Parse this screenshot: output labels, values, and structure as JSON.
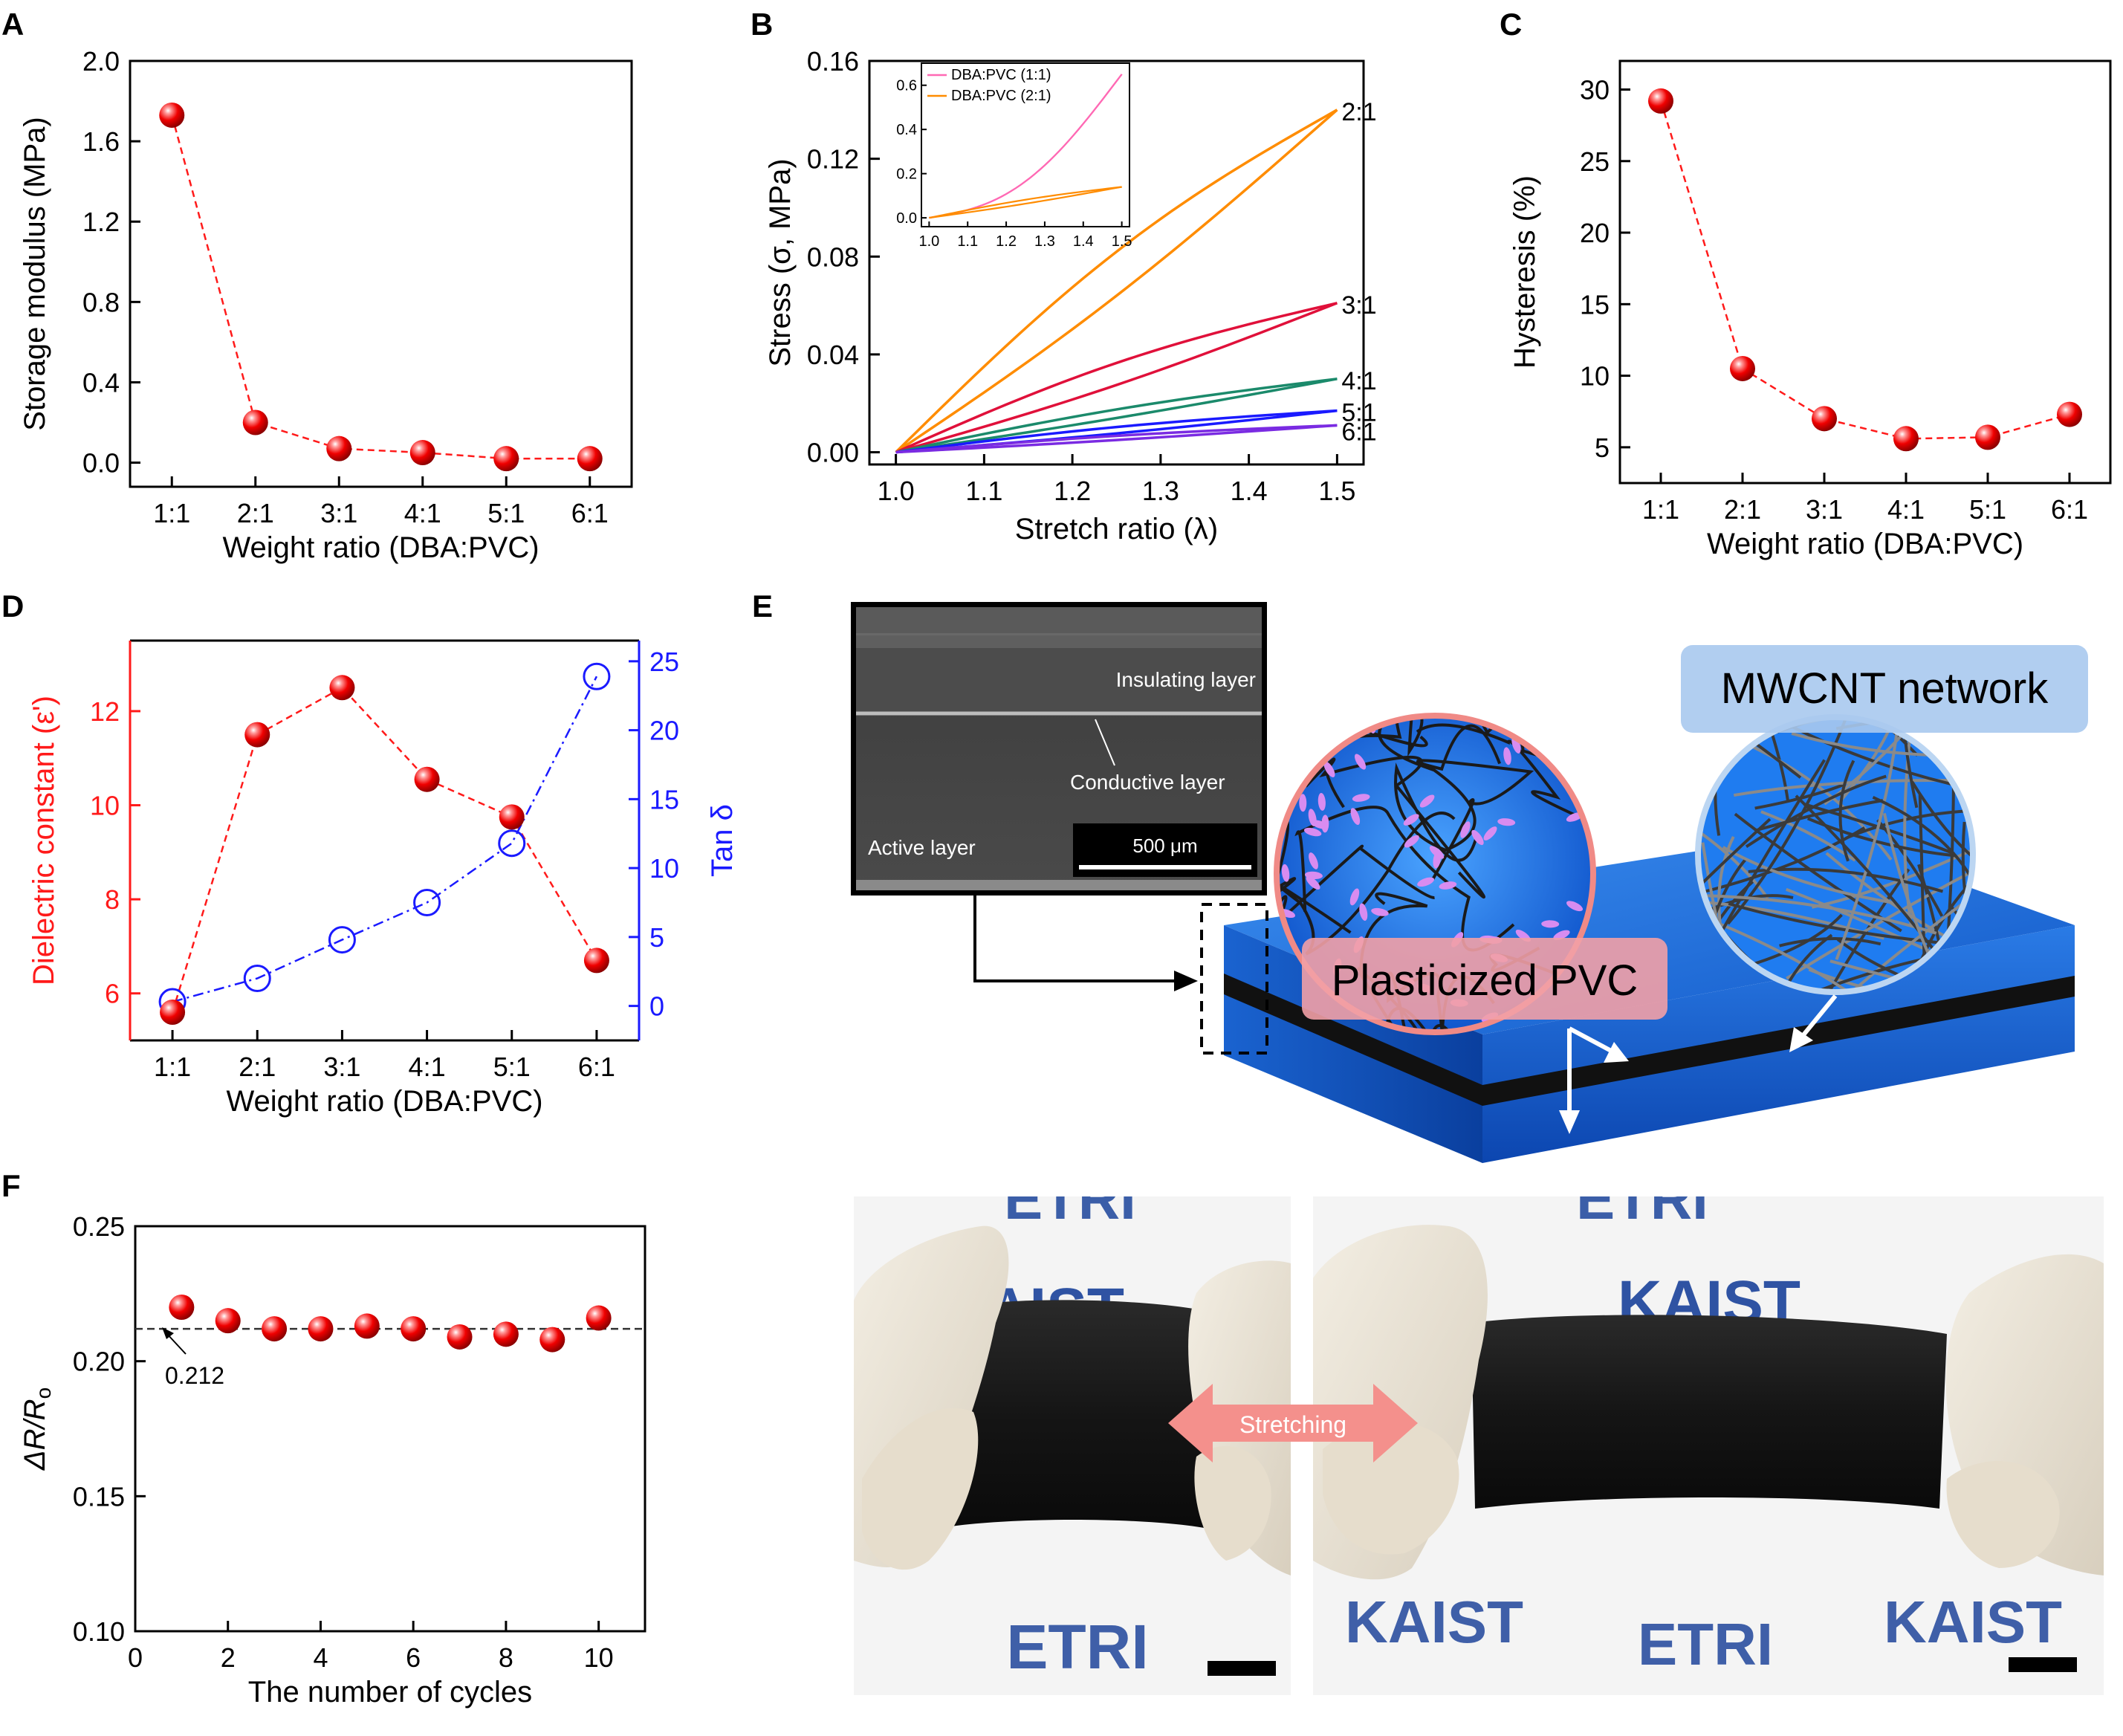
{
  "colors": {
    "red": "#ff1a1a",
    "blue": "#1a1aff",
    "orange": "#ff8c00",
    "crimson": "#e0103a",
    "green": "#1b8a6b",
    "purple": "#7a2be2",
    "pink": "#ff69b4",
    "layer_blue": "#1d6fd8",
    "salmon": "#f4908c"
  },
  "panels": {
    "a": "A",
    "b": "B",
    "c": "C",
    "d": "D",
    "e": "E",
    "f": "F"
  },
  "chart_data": [
    {
      "id": "A",
      "type": "scatter",
      "categories": [
        "1:1",
        "2:1",
        "3:1",
        "4:1",
        "5:1",
        "6:1"
      ],
      "values": [
        1.73,
        0.2,
        0.07,
        0.05,
        0.02,
        0.02
      ],
      "xlabel": "Weight ratio (DBA:PVC)",
      "ylabel": "Storage modulus (MPa)",
      "ylim": [
        -0.12,
        2.0
      ],
      "yticks": [
        0.0,
        0.4,
        0.8,
        1.2,
        1.6,
        2.0
      ],
      "ytick_labels": [
        "0.0",
        "0.4",
        "0.8",
        "1.2",
        "1.6",
        "2.0"
      ]
    },
    {
      "id": "B",
      "type": "line",
      "xlabel": "Stretch ratio (λ)",
      "ylabel": "Stress (σ, MPa)",
      "xlim": [
        0.97,
        1.53
      ],
      "ylim": [
        -0.005,
        0.16
      ],
      "xticks": [
        1.0,
        1.1,
        1.2,
        1.3,
        1.4,
        1.5
      ],
      "xtick_labels": [
        "1.0",
        "1.1",
        "1.2",
        "1.3",
        "1.4",
        "1.5"
      ],
      "yticks": [
        0.0,
        0.04,
        0.08,
        0.12,
        0.16
      ],
      "ytick_labels": [
        "0.00",
        "0.04",
        "0.08",
        "0.12",
        "0.16"
      ],
      "series": [
        {
          "name": "2:1",
          "label": "2:1",
          "max": 0.14,
          "loading_bulge": 0.006,
          "unloading_bulge": 0.012,
          "color_key": "orange"
        },
        {
          "name": "3:1",
          "label": "3:1",
          "max": 0.061,
          "loading_bulge": 0.003,
          "unloading_bulge": 0.006,
          "color_key": "crimson"
        },
        {
          "name": "4:1",
          "label": "4:1",
          "max": 0.03,
          "loading_bulge": 0.001,
          "unloading_bulge": 0.0025,
          "color_key": "green"
        },
        {
          "name": "5:1",
          "label": "5:1",
          "max": 0.017,
          "loading_bulge": 0.0008,
          "unloading_bulge": 0.0018,
          "color_key": "blue"
        },
        {
          "name": "6:1",
          "label": "6:1",
          "max": 0.011,
          "loading_bulge": 0.0005,
          "unloading_bulge": 0.0012,
          "color_key": "purple"
        }
      ],
      "inset": {
        "type": "line",
        "xlim": [
          0.98,
          1.52
        ],
        "ylim": [
          -0.04,
          0.7
        ],
        "xticks": [
          1.0,
          1.1,
          1.2,
          1.3,
          1.4,
          1.5
        ],
        "xtick_labels": [
          "1.0",
          "1.1",
          "1.2",
          "1.3",
          "1.4",
          "1.5"
        ],
        "yticks": [
          0.0,
          0.2,
          0.4,
          0.6
        ],
        "ytick_labels": [
          "0.0",
          "0.2",
          "0.4",
          "0.6"
        ],
        "series": [
          {
            "name": "DBA:PVC (1:1)",
            "max": 0.65,
            "loading_bulge": 0.16,
            "unloading_bulge": -0.16,
            "color_key": "pink"
          },
          {
            "name": "DBA:PVC (2:1)",
            "max": 0.14,
            "loading_bulge": 0.006,
            "unloading_bulge": 0.012,
            "color_key": "orange"
          }
        ]
      }
    },
    {
      "id": "C",
      "type": "scatter",
      "categories": [
        "1:1",
        "2:1",
        "3:1",
        "4:1",
        "5:1",
        "6:1"
      ],
      "values": [
        29.2,
        10.5,
        7.0,
        5.6,
        5.7,
        7.3
      ],
      "xlabel": "Weight ratio (DBA:PVC)",
      "ylabel": "Hysteresis (%)",
      "ylim": [
        2.5,
        32
      ],
      "yticks": [
        5,
        10,
        15,
        20,
        25,
        30
      ],
      "ytick_labels": [
        "5",
        "10",
        "15",
        "20",
        "25",
        "30"
      ]
    },
    {
      "id": "D",
      "type": "scatter",
      "categories": [
        "1:1",
        "2:1",
        "3:1",
        "4:1",
        "5:1",
        "6:1"
      ],
      "xlabel": "Weight ratio (DBA:PVC)",
      "ylabel_left": "Dielectric constant (ε')",
      "ylabel_right": "Tan δ",
      "ylim_left": [
        5.0,
        13.5
      ],
      "ylim_right": [
        -2.5,
        26.5
      ],
      "yticks_left": [
        6,
        8,
        10,
        12
      ],
      "ytick_labels_left": [
        "6",
        "8",
        "10",
        "12"
      ],
      "yticks_right": [
        0,
        5,
        10,
        15,
        20,
        25
      ],
      "ytick_labels_right": [
        "0",
        "5",
        "10",
        "15",
        "20",
        "25"
      ],
      "series": [
        {
          "name": "Dielectric constant (ε')",
          "axis": "left",
          "values": [
            5.6,
            11.5,
            12.5,
            10.55,
            9.75,
            6.7
          ]
        },
        {
          "name": "Tan δ",
          "axis": "right",
          "values": [
            0.3,
            2.0,
            4.8,
            7.5,
            11.8,
            23.9
          ]
        }
      ]
    },
    {
      "id": "F",
      "type": "scatter",
      "x": [
        1,
        2,
        3,
        4,
        5,
        6,
        7,
        8,
        9,
        10
      ],
      "values": [
        0.22,
        0.215,
        0.212,
        0.212,
        0.213,
        0.212,
        0.209,
        0.21,
        0.208,
        0.216
      ],
      "reference_line": 0.212,
      "annotation": "0.212",
      "xlabel": "The number of cycles",
      "ylabel": "ΔR/R",
      "ylabel_sub": "o",
      "xlim": [
        0,
        11
      ],
      "ylim": [
        0.1,
        0.25
      ],
      "xticks": [
        0,
        2,
        4,
        6,
        8,
        10
      ],
      "xtick_labels": [
        "0",
        "2",
        "4",
        "6",
        "8",
        "10"
      ],
      "yticks": [
        0.1,
        0.15,
        0.2,
        0.25
      ],
      "ytick_labels": [
        "0.10",
        "0.15",
        "0.20",
        "0.25"
      ]
    }
  ],
  "panel_e": {
    "sem_labels": {
      "insulating": "Insulating layer",
      "conductive": "Conductive layer",
      "active": "Active layer",
      "scale": "500 μm"
    },
    "mwcnt_label": "MWCNT network",
    "pvc_label": "Plasticized PVC"
  },
  "photos": {
    "stretch_label": "Stretching",
    "left": {
      "top": "ETRI",
      "mid": "KAIST",
      "bottom": "ETRI"
    },
    "right": {
      "top": "ETRI",
      "mid": "KAIST",
      "bottom_left": "KAIST",
      "bottom_mid": "ETRI",
      "bottom_right": "KAIST"
    }
  }
}
